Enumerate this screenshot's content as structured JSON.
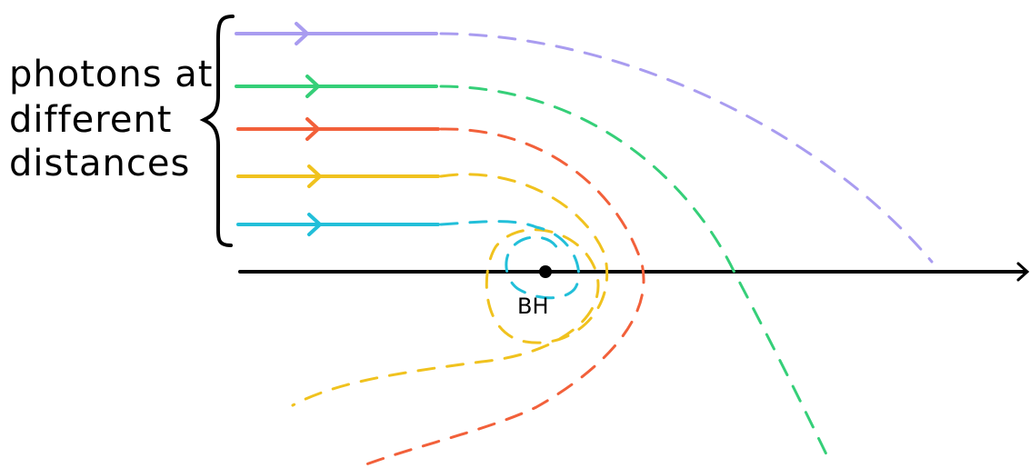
{
  "caption": {
    "line1": "photons at",
    "line2": "different",
    "line3": "distances"
  },
  "black_hole": {
    "label": "BH"
  },
  "photons": [
    {
      "name": "violet",
      "color": "#a99cf0"
    },
    {
      "name": "green",
      "color": "#35cf78"
    },
    {
      "name": "red",
      "color": "#f2603a"
    },
    {
      "name": "yellow",
      "color": "#f0c21e"
    },
    {
      "name": "cyan",
      "color": "#22bfd9"
    }
  ],
  "axis_color": "#000000"
}
